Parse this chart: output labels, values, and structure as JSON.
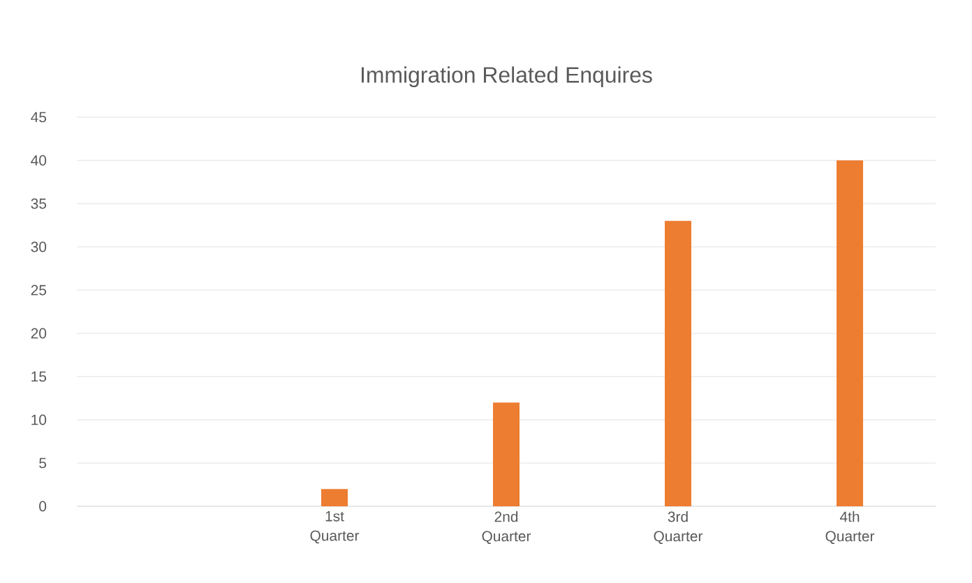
{
  "chart_data": {
    "type": "bar",
    "title": "Immigration Related Enquires",
    "categories": [
      null,
      "1st Quarter",
      "2nd Quarter",
      "3rd Quarter",
      "4th Quarter"
    ],
    "values": [
      null,
      2,
      12,
      33,
      40
    ],
    "color": "#ed7d31",
    "ylim": [
      0,
      45
    ],
    "yticks": [
      0,
      5,
      10,
      15,
      20,
      25,
      30,
      35,
      40,
      45
    ],
    "grid": "y"
  }
}
